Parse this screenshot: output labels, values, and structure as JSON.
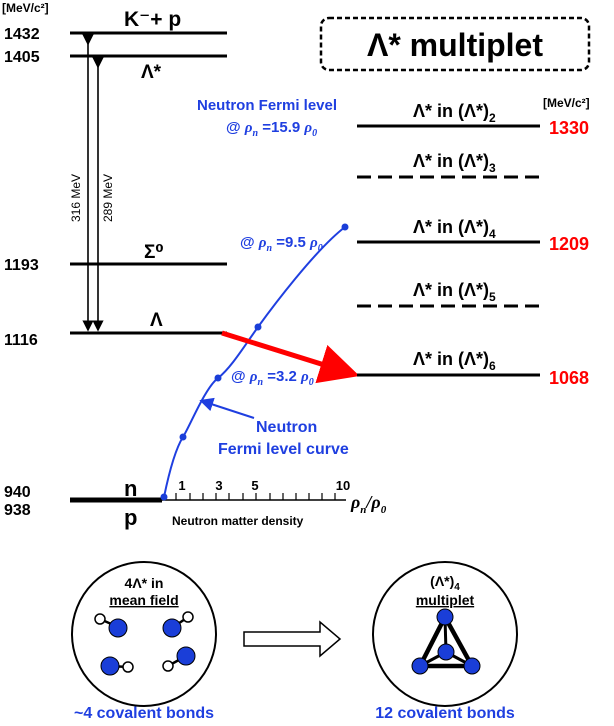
{
  "colors": {
    "black": "#000000",
    "blue": "#1f3fe0",
    "red": "#ff0000",
    "dot_blue": "#1a3ed8"
  },
  "units": "[MeV/c²]",
  "title": "Λ* multiplet",
  "left_levels": {
    "kp": {
      "energy": "1432",
      "label": "K⁻+ p"
    },
    "lstar": {
      "energy": "1405",
      "label": "Λ*"
    },
    "sigma": {
      "energy": "1193",
      "label": "Σ⁰"
    },
    "lambda": {
      "energy": "1116",
      "label": "Λ"
    },
    "n": {
      "energy": "940",
      "label": "n"
    },
    "p": {
      "energy": "938",
      "label": "p"
    }
  },
  "gaps": {
    "gap1": "316 MeV",
    "gap2": "289 MeV"
  },
  "axis": {
    "ticks": [
      "1",
      "3",
      "5",
      "10"
    ],
    "label_rho": "ρ",
    "label_n": "n",
    "label_slash": "/ρ",
    "label_0": "0",
    "name": "Neutron matter density"
  },
  "fermi_points": {
    "p1": {
      "prefix": "@ ",
      "rho": "ρ",
      "sub": "n",
      "value": " =15.9 ",
      "rho0": "ρ",
      "sub0": "0"
    },
    "p2": {
      "prefix": "@ ",
      "rho": "ρ",
      "sub": "n",
      "value": " =9.5 ",
      "rho0": "ρ",
      "sub0": "0"
    },
    "p3": {
      "prefix": "@ ",
      "rho": "ρ",
      "sub": "n",
      "value": " =3.2 ",
      "rho0": "ρ",
      "sub0": "0"
    }
  },
  "fermi_level_title": "Neutron Fermi level",
  "curve_label": {
    "line1": "Neutron",
    "line2": "Fermi level curve"
  },
  "right_levels": [
    {
      "label": "Λ* in (Λ*)",
      "sub": "2",
      "value": "1330"
    },
    {
      "label": "Λ* in (Λ*)",
      "sub": "3",
      "value": ""
    },
    {
      "label": "Λ* in (Λ*)",
      "sub": "4",
      "value": "1209"
    },
    {
      "label": "Λ* in (Λ*)",
      "sub": "5",
      "value": ""
    },
    {
      "label": "Λ* in (Λ*)",
      "sub": "6",
      "value": "1068"
    }
  ],
  "bottom": {
    "left_circle": {
      "line1": "4Λ* in",
      "line2": "mean field"
    },
    "right_circle": {
      "line1": "(Λ*)",
      "sub": "4",
      "line2": "multiplet"
    },
    "left_caption": "~4 covalent bonds",
    "right_caption": "12 covalent bonds"
  }
}
